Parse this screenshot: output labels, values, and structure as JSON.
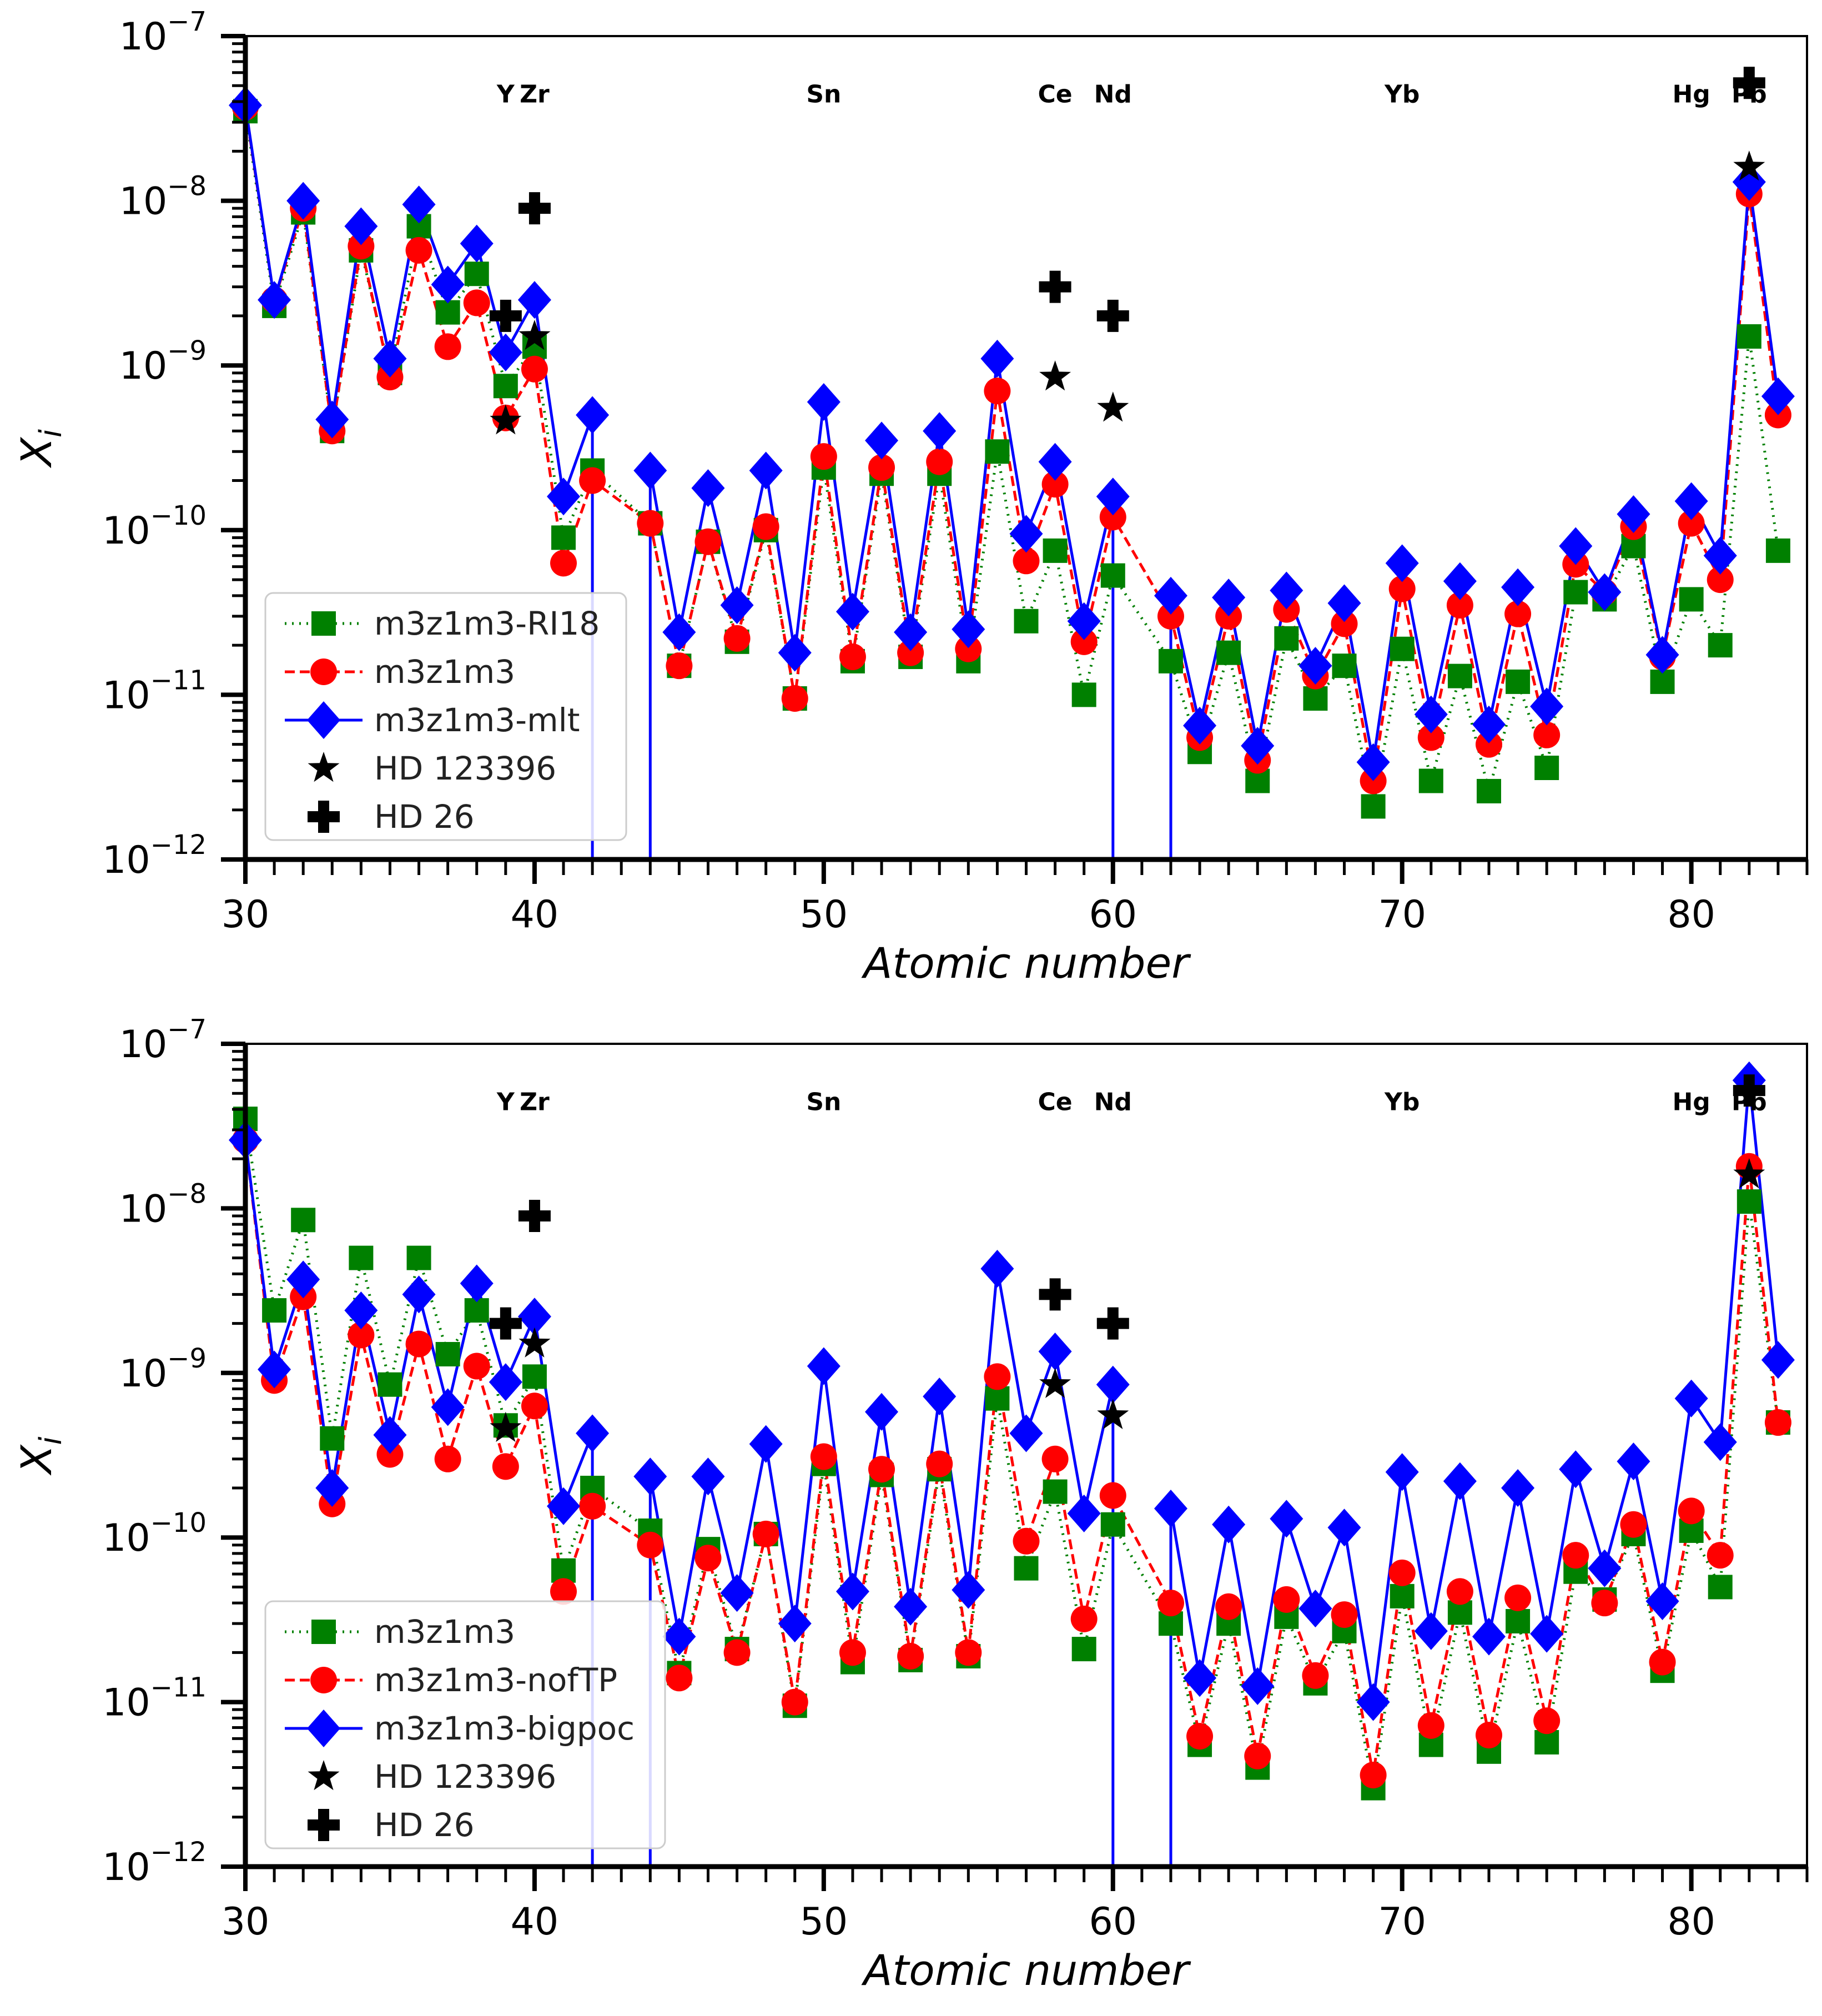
{
  "chart_data": [
    {
      "type": "line",
      "scale_y": "log",
      "xlim": [
        30,
        84
      ],
      "ylim": [
        1e-12,
        1e-07
      ],
      "xlabel": "Atomic number",
      "ylabel": "X",
      "ylabel_sub": "i",
      "xticks": [
        "30",
        "40",
        "50",
        "60",
        "70",
        "80"
      ],
      "yticks": [
        {
          "base": "10",
          "exp": "−7"
        },
        {
          "base": "10",
          "exp": "−8"
        },
        {
          "base": "10",
          "exp": "−9"
        },
        {
          "base": "10",
          "exp": "−10"
        },
        {
          "base": "10",
          "exp": "−11"
        },
        {
          "base": "10",
          "exp": "−12"
        }
      ],
      "element_labels": [
        {
          "x": 39,
          "text": "Y"
        },
        {
          "x": 40,
          "text": "Zr"
        },
        {
          "x": 50,
          "text": "Sn"
        },
        {
          "x": 58,
          "text": "Ce"
        },
        {
          "x": 60,
          "text": "Nd"
        },
        {
          "x": 70,
          "text": "Yb"
        },
        {
          "x": 80,
          "text": "Hg"
        },
        {
          "x": 82,
          "text": "Pb"
        }
      ],
      "legend_position": "lower-left",
      "series": [
        {
          "name": "m3z1m3-RI18",
          "color": "#008000",
          "marker": "square",
          "style": "dotted",
          "x": [
            30,
            31,
            32,
            33,
            34,
            35,
            36,
            37,
            38,
            39,
            40,
            41,
            42,
            44,
            45,
            46,
            47,
            48,
            49,
            50,
            51,
            52,
            53,
            54,
            55,
            56,
            57,
            58,
            59,
            60,
            62,
            63,
            64,
            65,
            66,
            67,
            68,
            69,
            70,
            71,
            72,
            73,
            74,
            75,
            76,
            77,
            78,
            79,
            80,
            81,
            82,
            83
          ],
          "y": [
            3.5e-08,
            2.3e-09,
            8.5e-09,
            4e-10,
            5e-09,
            9e-10,
            7e-09,
            2.1e-09,
            3.6e-09,
            7.5e-10,
            1.3e-09,
            9e-11,
            2.3e-10,
            1.1e-10,
            1.5e-11,
            8.5e-11,
            2.1e-11,
            1e-10,
            9.5e-12,
            2.4e-10,
            1.6e-11,
            2.2e-10,
            1.7e-11,
            2.2e-10,
            1.6e-11,
            3e-10,
            2.8e-11,
            7.5e-11,
            1e-11,
            5.3e-11,
            1.6e-11,
            4.5e-12,
            1.8e-11,
            3e-12,
            2.2e-11,
            9.5e-12,
            1.5e-11,
            2.1e-12,
            1.9e-11,
            3e-12,
            1.3e-11,
            2.6e-12,
            1.2e-11,
            3.6e-12,
            4.2e-11,
            3.8e-11,
            8e-11,
            1.2e-11,
            3.8e-11,
            2e-11,
            1.5e-09,
            7.5e-11
          ]
        },
        {
          "name": "m3z1m3",
          "color": "#ff0000",
          "marker": "circle",
          "style": "dashed",
          "x": [
            30,
            31,
            32,
            33,
            34,
            35,
            36,
            37,
            38,
            39,
            40,
            41,
            42,
            44,
            45,
            46,
            47,
            48,
            49,
            50,
            51,
            52,
            53,
            54,
            55,
            56,
            57,
            58,
            59,
            60,
            62,
            63,
            64,
            65,
            66,
            67,
            68,
            69,
            70,
            71,
            72,
            73,
            74,
            75,
            76,
            77,
            78,
            79,
            80,
            81,
            82,
            83
          ],
          "y": [
            3.7e-08,
            2.5e-09,
            9e-09,
            4e-10,
            5.3e-09,
            8.5e-10,
            5e-09,
            1.3e-09,
            2.4e-09,
            4.8e-10,
            9.5e-10,
            6.3e-11,
            2e-10,
            1.1e-10,
            1.5e-11,
            8.5e-11,
            2.2e-11,
            1.05e-10,
            9.5e-12,
            2.8e-10,
            1.7e-11,
            2.4e-10,
            1.8e-11,
            2.6e-10,
            1.9e-11,
            7e-10,
            6.5e-11,
            1.9e-10,
            2.1e-11,
            1.2e-10,
            3e-11,
            5.5e-12,
            3e-11,
            4e-12,
            3.3e-11,
            1.3e-11,
            2.7e-11,
            3e-12,
            4.4e-11,
            5.5e-12,
            3.5e-11,
            5e-12,
            3.1e-11,
            5.7e-12,
            6.2e-11,
            4.2e-11,
            1.05e-10,
            1.7e-11,
            1.1e-10,
            5e-11,
            1.1e-08,
            5e-10
          ]
        },
        {
          "name": "m3z1m3-mlt",
          "color": "#0000ff",
          "marker": "diamond",
          "style": "solid",
          "x": [
            30,
            31,
            32,
            33,
            34,
            35,
            36,
            37,
            38,
            39,
            40,
            41,
            42,
            43,
            44,
            45,
            46,
            47,
            48,
            49,
            50,
            51,
            52,
            53,
            54,
            55,
            56,
            57,
            58,
            59,
            60,
            61,
            62,
            63,
            64,
            65,
            66,
            67,
            68,
            69,
            70,
            71,
            72,
            73,
            74,
            75,
            76,
            77,
            78,
            79,
            80,
            81,
            82,
            83
          ],
          "y": [
            3.8e-08,
            2.5e-09,
            1e-08,
            4.7e-10,
            7e-09,
            1.1e-09,
            9.5e-09,
            3.1e-09,
            5.5e-09,
            1.2e-09,
            2.5e-09,
            1.6e-10,
            5e-10,
            null,
            2.3e-10,
            2.4e-11,
            1.8e-10,
            3.5e-11,
            2.3e-10,
            1.8e-11,
            6e-10,
            3.2e-11,
            3.5e-10,
            2.4e-11,
            4e-10,
            2.5e-11,
            1.1e-09,
            9.5e-11,
            2.6e-10,
            2.8e-11,
            1.6e-10,
            null,
            4e-11,
            6.5e-12,
            3.9e-11,
            4.9e-12,
            4.3e-11,
            1.5e-11,
            3.6e-11,
            3.9e-12,
            6.3e-11,
            7.6e-12,
            4.9e-11,
            6.6e-12,
            4.5e-11,
            8.5e-12,
            8e-11,
            4.2e-11,
            1.25e-10,
            1.75e-11,
            1.5e-10,
            7e-11,
            1.3e-08,
            6.5e-10
          ]
        },
        {
          "name": "HD 123396",
          "color": "#000000",
          "marker": "star",
          "style": "none",
          "x": [
            39,
            40,
            58,
            60,
            82
          ],
          "y": [
            4.6e-10,
            1.5e-09,
            8.5e-10,
            5.5e-10,
            1.6e-08
          ]
        },
        {
          "name": "HD 26",
          "color": "#000000",
          "marker": "plus",
          "style": "none",
          "x": [
            39,
            40,
            58,
            60,
            82
          ],
          "y": [
            2e-09,
            9e-09,
            3e-09,
            2e-09,
            5.2e-08
          ]
        }
      ]
    },
    {
      "type": "line",
      "scale_y": "log",
      "xlim": [
        30,
        84
      ],
      "ylim": [
        1e-12,
        1e-07
      ],
      "xlabel": "Atomic number",
      "ylabel": "X",
      "ylabel_sub": "i",
      "xticks": [
        "30",
        "40",
        "50",
        "60",
        "70",
        "80"
      ],
      "yticks": [
        {
          "base": "10",
          "exp": "−7"
        },
        {
          "base": "10",
          "exp": "−8"
        },
        {
          "base": "10",
          "exp": "−9"
        },
        {
          "base": "10",
          "exp": "−10"
        },
        {
          "base": "10",
          "exp": "−11"
        },
        {
          "base": "10",
          "exp": "−12"
        }
      ],
      "element_labels": [
        {
          "x": 39,
          "text": "Y"
        },
        {
          "x": 40,
          "text": "Zr"
        },
        {
          "x": 50,
          "text": "Sn"
        },
        {
          "x": 58,
          "text": "Ce"
        },
        {
          "x": 60,
          "text": "Nd"
        },
        {
          "x": 70,
          "text": "Yb"
        },
        {
          "x": 80,
          "text": "Hg"
        },
        {
          "x": 82,
          "text": "Pb"
        }
      ],
      "legend_position": "lower-left",
      "series": [
        {
          "name": "m3z1m3",
          "color": "#008000",
          "marker": "square",
          "style": "dotted",
          "x": [
            30,
            31,
            32,
            33,
            34,
            35,
            36,
            37,
            38,
            39,
            40,
            41,
            42,
            44,
            45,
            46,
            47,
            48,
            49,
            50,
            51,
            52,
            53,
            54,
            55,
            56,
            57,
            58,
            59,
            60,
            62,
            63,
            64,
            65,
            66,
            67,
            68,
            69,
            70,
            71,
            72,
            73,
            74,
            75,
            76,
            77,
            78,
            79,
            80,
            81,
            82,
            83
          ],
          "y": [
            3.5e-08,
            2.4e-09,
            8.5e-09,
            4e-10,
            5e-09,
            8.5e-10,
            5e-09,
            1.3e-09,
            2.4e-09,
            4.8e-10,
            9.5e-10,
            6.3e-11,
            2e-10,
            1.1e-10,
            1.5e-11,
            8.5e-11,
            2.1e-11,
            1.05e-10,
            9.5e-12,
            2.8e-10,
            1.75e-11,
            2.4e-10,
            1.8e-11,
            2.6e-10,
            1.9e-11,
            7e-10,
            6.5e-11,
            1.9e-10,
            2.1e-11,
            1.2e-10,
            3e-11,
            5.5e-12,
            3e-11,
            4e-12,
            3.3e-11,
            1.3e-11,
            2.7e-11,
            3e-12,
            4.4e-11,
            5.5e-12,
            3.5e-11,
            5e-12,
            3.1e-11,
            5.7e-12,
            6.2e-11,
            4.2e-11,
            1.05e-10,
            1.55e-11,
            1.1e-10,
            5e-11,
            1.1e-08,
            5e-10
          ]
        },
        {
          "name": "m3z1m3-nofTP",
          "color": "#ff0000",
          "marker": "circle",
          "style": "dashed",
          "x": [
            30,
            31,
            32,
            33,
            34,
            35,
            36,
            37,
            38,
            39,
            40,
            41,
            42,
            44,
            45,
            46,
            47,
            48,
            49,
            50,
            51,
            52,
            53,
            54,
            55,
            56,
            57,
            58,
            59,
            60,
            62,
            63,
            64,
            65,
            66,
            67,
            68,
            69,
            70,
            71,
            72,
            73,
            74,
            75,
            76,
            77,
            78,
            79,
            80,
            81,
            82,
            83
          ],
          "y": [
            2.6e-08,
            9e-10,
            2.9e-09,
            1.6e-10,
            1.7e-09,
            3.2e-10,
            1.5e-09,
            3e-10,
            1.1e-09,
            2.7e-10,
            6.3e-10,
            4.7e-11,
            1.55e-10,
            9e-11,
            1.4e-11,
            7.5e-11,
            2e-11,
            1.05e-10,
            1e-11,
            3.1e-10,
            2e-11,
            2.6e-10,
            1.9e-11,
            2.8e-10,
            2e-11,
            9.5e-10,
            9.5e-11,
            3e-10,
            3.2e-11,
            1.8e-10,
            4e-11,
            6.2e-12,
            3.8e-11,
            4.7e-12,
            4.2e-11,
            1.45e-11,
            3.4e-11,
            3.6e-12,
            6.1e-11,
            7.2e-12,
            4.7e-11,
            6.3e-12,
            4.3e-11,
            7.7e-12,
            7.8e-11,
            4e-11,
            1.2e-10,
            1.75e-11,
            1.45e-10,
            7.8e-11,
            1.8e-08,
            5e-10
          ]
        },
        {
          "name": "m3z1m3-bigpoc",
          "color": "#0000ff",
          "marker": "diamond",
          "style": "solid",
          "x": [
            30,
            31,
            32,
            33,
            34,
            35,
            36,
            37,
            38,
            39,
            40,
            41,
            42,
            43,
            44,
            45,
            46,
            47,
            48,
            49,
            50,
            51,
            52,
            53,
            54,
            55,
            56,
            57,
            58,
            59,
            60,
            61,
            62,
            63,
            64,
            65,
            66,
            67,
            68,
            69,
            70,
            71,
            72,
            73,
            74,
            75,
            76,
            77,
            78,
            79,
            80,
            81,
            82,
            83
          ],
          "y": [
            2.6e-08,
            1.05e-09,
            3.7e-09,
            2e-10,
            2.4e-09,
            4.2e-10,
            3e-09,
            6.2e-10,
            3.5e-09,
            8.8e-10,
            2.2e-09,
            1.55e-10,
            4.3e-10,
            null,
            2.35e-10,
            2.5e-11,
            2.35e-10,
            4.6e-11,
            3.7e-10,
            3e-11,
            1.1e-09,
            4.7e-11,
            5.8e-10,
            3.8e-11,
            7.2e-10,
            4.8e-11,
            4.3e-09,
            4.3e-10,
            1.35e-09,
            1.4e-10,
            8.5e-10,
            null,
            1.5e-10,
            1.4e-11,
            1.2e-10,
            1.25e-11,
            1.3e-10,
            3.7e-11,
            1.15e-10,
            1e-11,
            2.5e-10,
            2.7e-11,
            2.2e-10,
            2.5e-11,
            2e-10,
            2.6e-11,
            2.6e-10,
            6.5e-11,
            2.9e-10,
            4.1e-11,
            7e-10,
            3.8e-10,
            6e-08,
            1.2e-09
          ]
        },
        {
          "name": "HD 123396",
          "color": "#000000",
          "marker": "star",
          "style": "none",
          "x": [
            39,
            40,
            58,
            60,
            82
          ],
          "y": [
            4.6e-10,
            1.5e-09,
            8.5e-10,
            5.5e-10,
            1.6e-08
          ]
        },
        {
          "name": "HD 26",
          "color": "#000000",
          "marker": "plus",
          "style": "none",
          "x": [
            39,
            40,
            58,
            60,
            82
          ],
          "y": [
            2e-09,
            9e-09,
            3e-09,
            2e-09,
            5.2e-08
          ]
        }
      ]
    }
  ]
}
